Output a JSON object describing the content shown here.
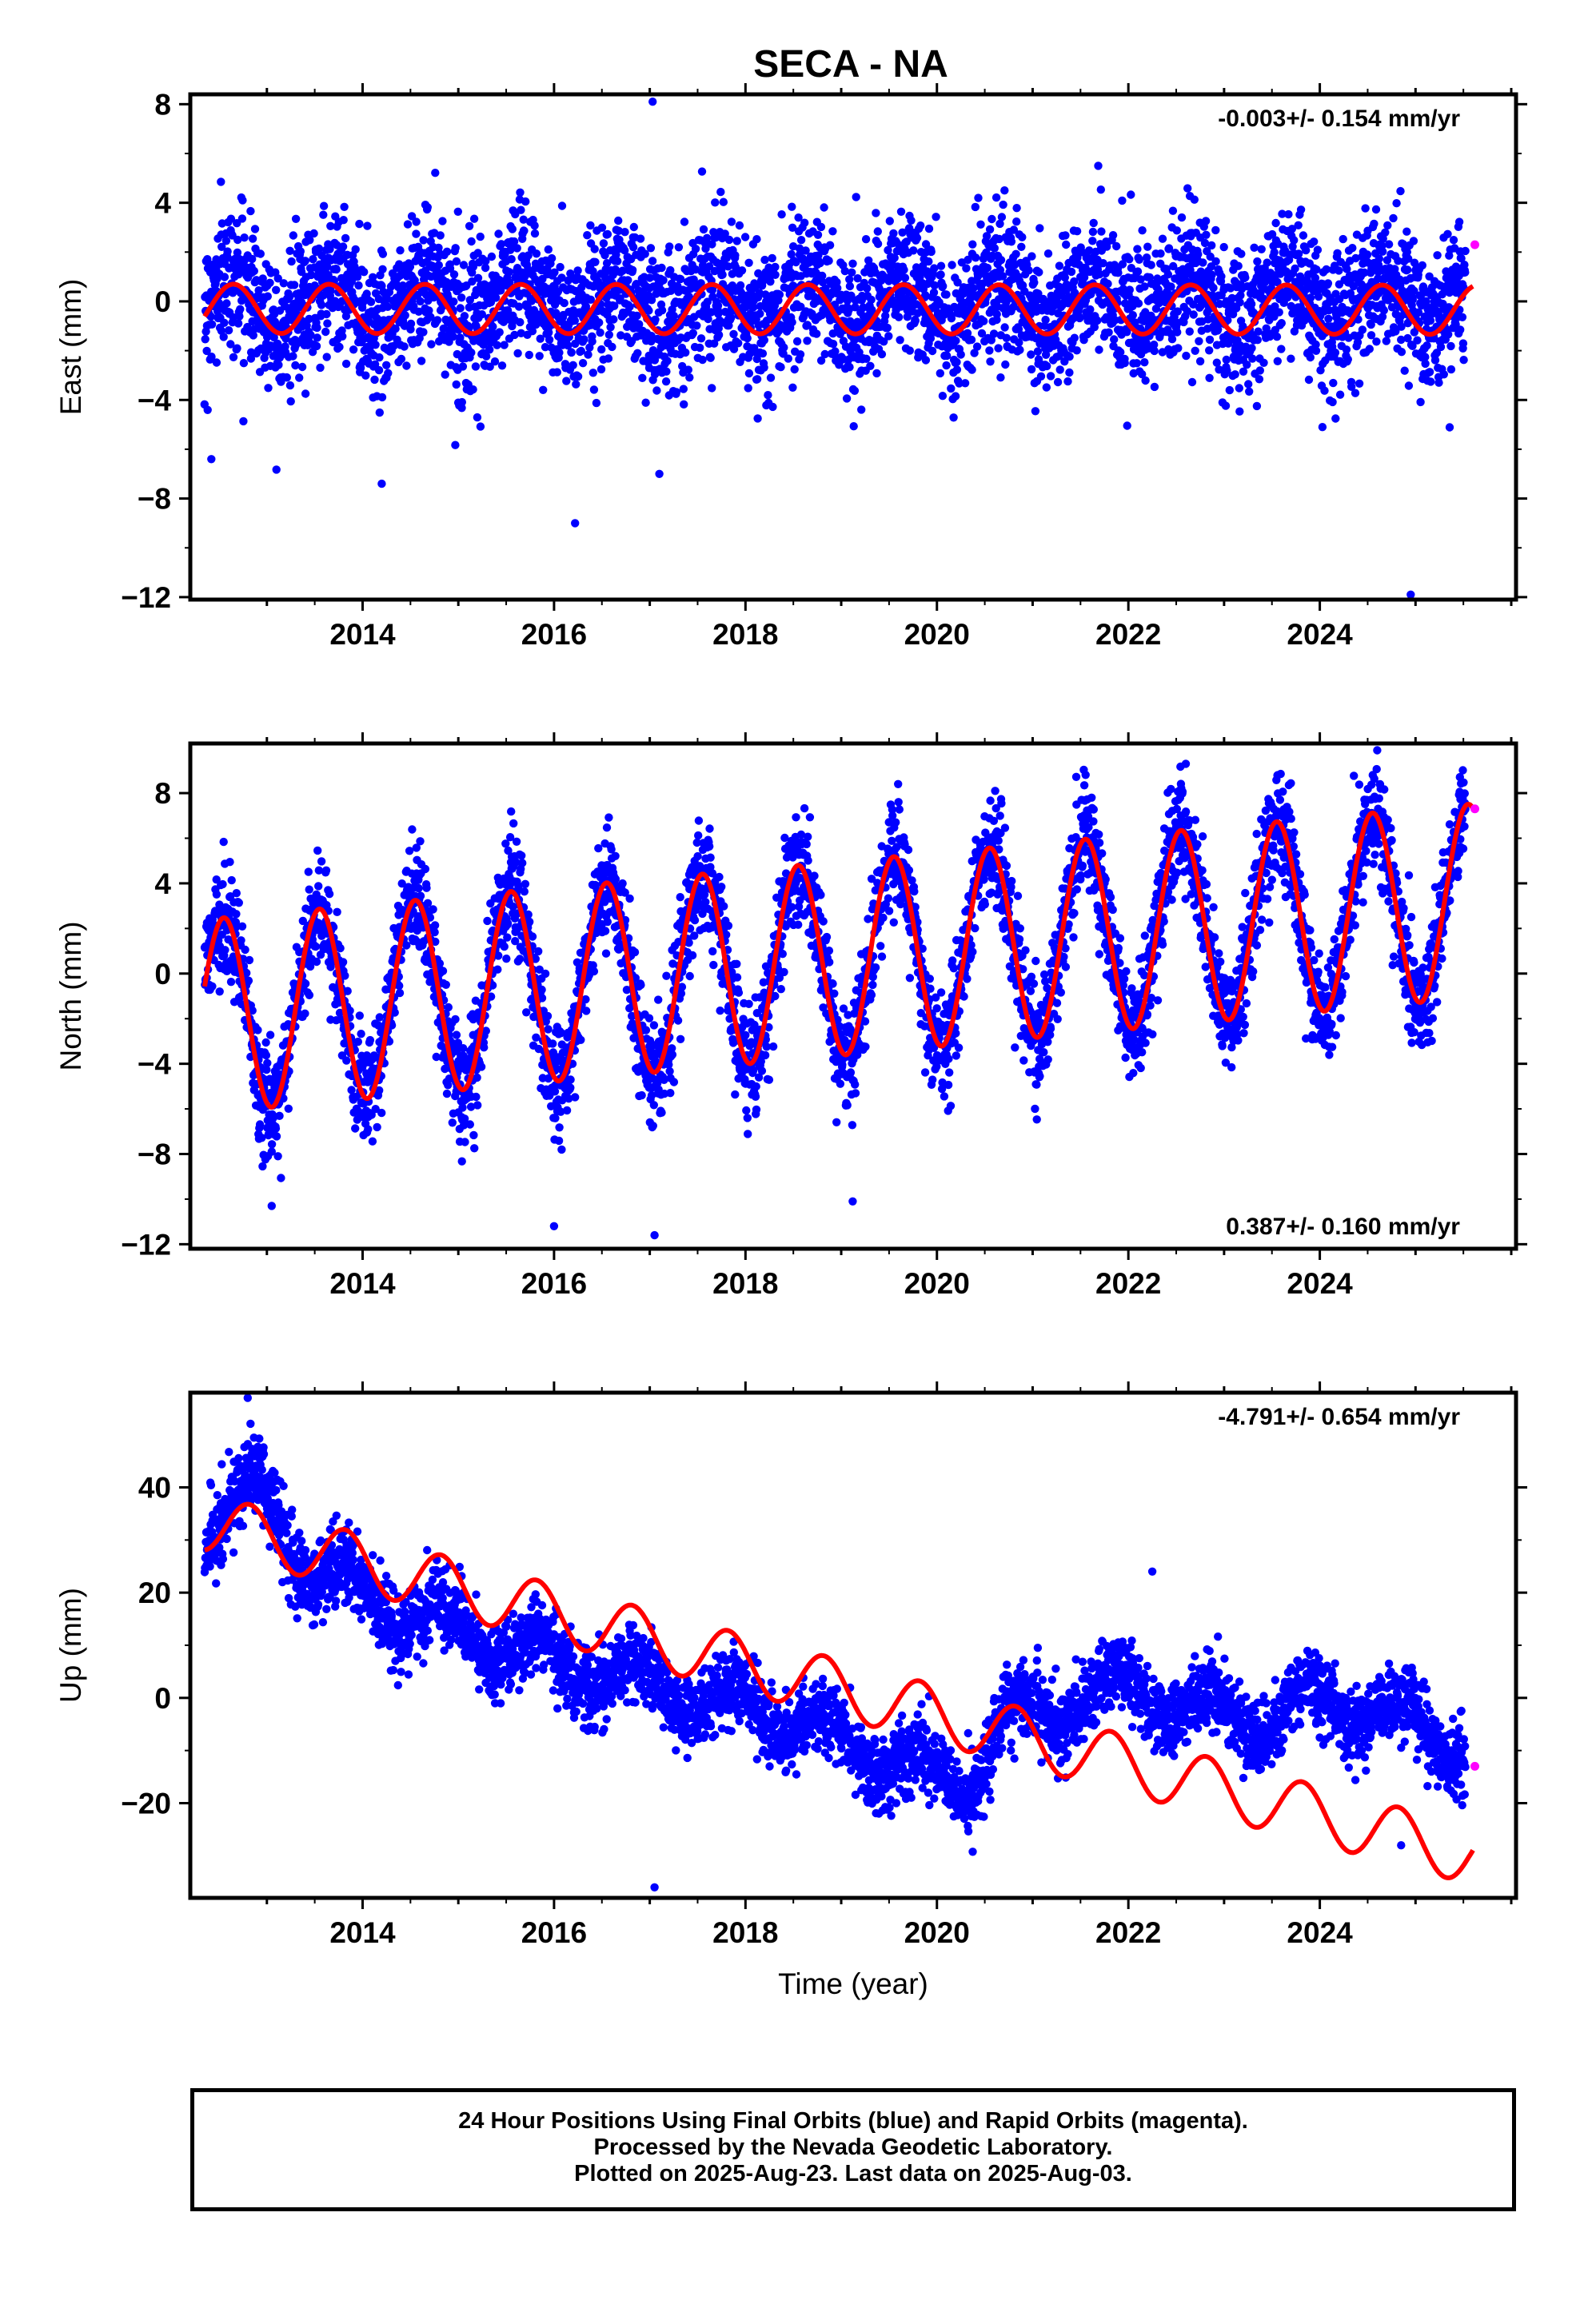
{
  "title": "SECA - NA",
  "caption": {
    "line1": "24 Hour Positions Using Final Orbits (blue) and Rapid Orbits (magenta).",
    "line2": "Processed by the Nevada Geodetic Laboratory.",
    "line3": "Plotted on 2025-Aug-23. Last data on 2025-Aug-03."
  },
  "colors": {
    "final_orbits": "#0000ff",
    "rapid_orbits": "#ff00ff",
    "model": "#ff0000",
    "frame": "#000000"
  },
  "chart_data": [
    {
      "type": "scatter",
      "panel": "east",
      "ylabel": "East (mm)",
      "xlabel": "",
      "rate_label": "-0.003+/- 0.154 mm/yr",
      "rate_position": "top-right",
      "xlim": [
        2012.2,
        2026.05
      ],
      "ylim": [
        -12.1,
        8.4
      ],
      "xticks": [
        2014,
        2016,
        2018,
        2020,
        2022,
        2024
      ],
      "yticks": [
        -12,
        -8,
        -4,
        0,
        4,
        8
      ],
      "ytick_labels": [
        "−12",
        "−8",
        "−4",
        "0",
        "4",
        "8"
      ],
      "series": [
        {
          "name": "Final Orbits",
          "kind": "points",
          "color": "blue",
          "x_range": [
            2012.35,
            2025.52
          ],
          "trend_start": 0.0,
          "trend_rate": -0.003,
          "seasonal_amp": 1.0,
          "seasonal_peak_phase": 0.65,
          "noise_sd": 1.4,
          "outliers": [
            [
              2017.03,
              8.1
            ],
            [
              2016.22,
              -9.0
            ],
            [
              2024.95,
              -11.9
            ],
            [
              2014.2,
              -7.4
            ],
            [
              2017.1,
              -7.0
            ],
            [
              2012.42,
              -6.4
            ]
          ]
        },
        {
          "name": "Rapid Orbits",
          "kind": "points",
          "color": "magenta",
          "points": [
            [
              2025.62,
              2.3
            ]
          ]
        },
        {
          "name": "Model",
          "kind": "line",
          "color": "red",
          "x_range": [
            2012.35,
            2025.6
          ],
          "trend_start": 0.0,
          "trend_rate": -0.003,
          "seasonal_amp": 1.0,
          "seasonal_peak_phase": 0.65,
          "offset": -0.3
        }
      ]
    },
    {
      "type": "scatter",
      "panel": "north",
      "ylabel": "North (mm)",
      "xlabel": "",
      "rate_label": "0.387+/- 0.160 mm/yr",
      "rate_position": "bottom-right",
      "xlim": [
        2012.2,
        2026.05
      ],
      "ylim": [
        -12.2,
        10.2
      ],
      "xticks": [
        2014,
        2016,
        2018,
        2020,
        2022,
        2024
      ],
      "yticks": [
        -12,
        -8,
        -4,
        0,
        4,
        8
      ],
      "ytick_labels": [
        "−12",
        "−8",
        "−4",
        "0",
        "4",
        "8"
      ],
      "series": [
        {
          "name": "Final Orbits",
          "kind": "points",
          "color": "blue",
          "x_range": [
            2012.35,
            2025.52
          ],
          "trend_start": -1.9,
          "trend_rate": 0.387,
          "seasonal_amp": 4.3,
          "seasonal_peak_phase": 0.55,
          "noise_sd": 1.2,
          "outliers": [
            [
              2017.05,
              -11.6
            ],
            [
              2016.0,
              -11.2
            ],
            [
              2019.12,
              -10.1
            ],
            [
              2013.05,
              -10.3
            ],
            [
              2024.6,
              9.9
            ],
            [
              2022.6,
              9.3
            ]
          ]
        },
        {
          "name": "Rapid Orbits",
          "kind": "points",
          "color": "magenta",
          "points": [
            [
              2025.62,
              7.3
            ]
          ]
        },
        {
          "name": "Model",
          "kind": "line",
          "color": "red",
          "x_range": [
            2012.35,
            2025.6
          ],
          "trend_start": -1.9,
          "trend_rate": 0.387,
          "seasonal_amp": 4.3,
          "seasonal_peak_phase": 0.55,
          "offset": 0
        }
      ]
    },
    {
      "type": "scatter",
      "panel": "up",
      "ylabel": "Up (mm)",
      "xlabel": "Time (year)",
      "rate_label": "-4.791+/- 0.654 mm/yr",
      "rate_position": "top-right",
      "xlim": [
        2012.2,
        2026.05
      ],
      "ylim": [
        -38,
        58
      ],
      "xticks": [
        2014,
        2016,
        2018,
        2020,
        2022,
        2024
      ],
      "yticks": [
        -20,
        0,
        20,
        40
      ],
      "ytick_labels": [
        "−20",
        "0",
        "20",
        "40"
      ],
      "series": [
        {
          "name": "Final Orbits",
          "kind": "points",
          "color": "blue",
          "x_range": [
            2012.35,
            2025.52
          ],
          "profile": [
            [
              2012.35,
              32
            ],
            [
              2012.9,
              40
            ],
            [
              2013.5,
              23
            ],
            [
              2014.5,
              16
            ],
            [
              2015.5,
              10
            ],
            [
              2016.5,
              5
            ],
            [
              2017.5,
              0
            ],
            [
              2018.5,
              -4
            ],
            [
              2019.5,
              -12
            ],
            [
              2020.3,
              -17
            ],
            [
              2020.7,
              -5
            ],
            [
              2021.5,
              0
            ],
            [
              2022.0,
              2
            ],
            [
              2022.8,
              -3
            ],
            [
              2023.5,
              -4
            ],
            [
              2024.0,
              0
            ],
            [
              2025.0,
              -5
            ],
            [
              2025.52,
              -10
            ]
          ],
          "seasonal_amp": 4.0,
          "seasonal_peak_phase": 0.85,
          "noise_sd": 3.5,
          "outliers": [
            [
              2017.05,
              -36
            ],
            [
              2022.25,
              24
            ],
            [
              2012.8,
              57
            ],
            [
              2024.85,
              -28
            ]
          ]
        },
        {
          "name": "Rapid Orbits",
          "kind": "points",
          "color": "magenta",
          "points": [
            [
              2025.62,
              -13
            ]
          ]
        },
        {
          "name": "Model",
          "kind": "line",
          "color": "red",
          "x_range": [
            2012.35,
            2025.6
          ],
          "trend_start": 33.5,
          "trend_rate": -4.791,
          "seasonal_amp": 5.5,
          "seasonal_peak_phase": 0.82,
          "offset": 0
        }
      ]
    }
  ]
}
